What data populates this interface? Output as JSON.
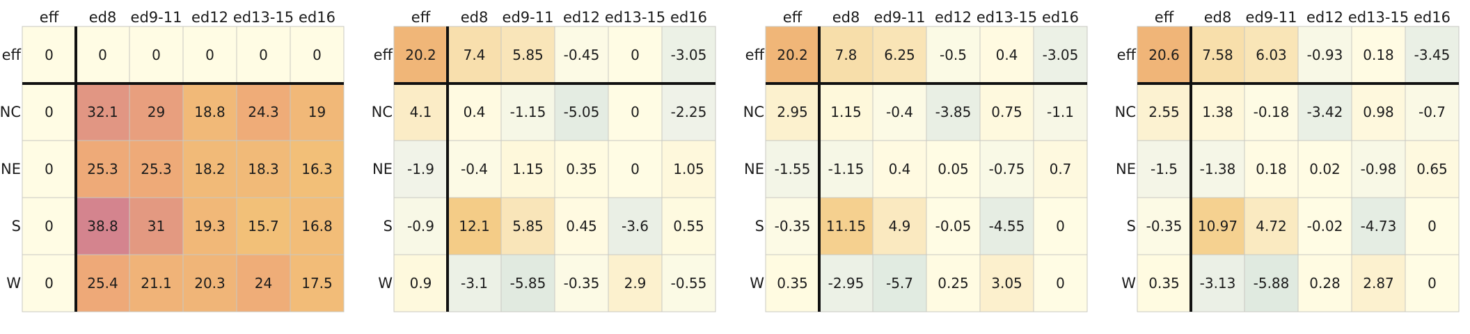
{
  "chart_data": [
    {
      "type": "heatmap",
      "columns": [
        "eff",
        "ed8",
        "ed9-11",
        "ed12",
        "ed13-15",
        "ed16"
      ],
      "rows": [
        "eff",
        "NC",
        "NE",
        "S",
        "W"
      ],
      "values": [
        [
          0,
          0,
          0,
          0,
          0,
          0
        ],
        [
          0,
          32.1,
          29,
          18.8,
          24.3,
          19
        ],
        [
          0,
          25.3,
          25.3,
          18.2,
          18.3,
          16.3
        ],
        [
          0,
          38.8,
          31,
          19.3,
          15.7,
          16.8
        ],
        [
          0,
          25.4,
          21.1,
          20.3,
          24,
          17.5
        ]
      ],
      "labels": [
        [
          "0",
          "0",
          "0",
          "0",
          "0",
          "0"
        ],
        [
          "0",
          "32.1",
          "29",
          "18.8",
          "24.3",
          "19"
        ],
        [
          "0",
          "25.3",
          "25.3",
          "18.2",
          "18.3",
          "16.3"
        ],
        [
          "0",
          "38.8",
          "31",
          "19.3",
          "15.7",
          "16.8"
        ],
        [
          "0",
          "25.4",
          "21.1",
          "20.3",
          "24",
          "17.5"
        ]
      ]
    },
    {
      "type": "heatmap",
      "columns": [
        "eff",
        "ed8",
        "ed9-11",
        "ed12",
        "ed13-15",
        "ed16"
      ],
      "rows": [
        "eff",
        "NC",
        "NE",
        "S",
        "W"
      ],
      "values": [
        [
          20.2,
          7.4,
          5.85,
          -0.45,
          0,
          -3.05
        ],
        [
          4.1,
          0.4,
          -1.15,
          -5.05,
          0,
          -2.25
        ],
        [
          -1.9,
          -0.4,
          1.15,
          0.35,
          0,
          1.05
        ],
        [
          -0.9,
          12.1,
          5.85,
          0.45,
          -3.6,
          0.55
        ],
        [
          0.9,
          -3.1,
          -5.85,
          -0.35,
          2.9,
          -0.55
        ]
      ],
      "labels": [
        [
          "20.2",
          "7.4",
          "5.85",
          "-0.45",
          "0",
          "-3.05"
        ],
        [
          "4.1",
          "0.4",
          "-1.15",
          "-5.05",
          "0",
          "-2.25"
        ],
        [
          "-1.9",
          "-0.4",
          "1.15",
          "0.35",
          "0",
          "1.05"
        ],
        [
          "-0.9",
          "12.1",
          "5.85",
          "0.45",
          "-3.6",
          "0.55"
        ],
        [
          "0.9",
          "-3.1",
          "-5.85",
          "-0.35",
          "2.9",
          "-0.55"
        ]
      ]
    },
    {
      "type": "heatmap",
      "columns": [
        "eff",
        "ed8",
        "ed9-11",
        "ed12",
        "ed13-15",
        "ed16"
      ],
      "rows": [
        "eff",
        "NC",
        "NE",
        "S",
        "W"
      ],
      "values": [
        [
          20.2,
          7.8,
          6.25,
          -0.5,
          0.4,
          -3.05
        ],
        [
          2.95,
          1.15,
          -0.4,
          -3.85,
          0.75,
          -1.1
        ],
        [
          -1.55,
          -1.15,
          0.4,
          0.05,
          -0.75,
          0.7
        ],
        [
          -0.35,
          11.15,
          4.9,
          -0.05,
          -4.55,
          0
        ],
        [
          0.35,
          -2.95,
          -5.7,
          0.25,
          3.05,
          0
        ]
      ],
      "labels": [
        [
          "20.2",
          "7.8",
          "6.25",
          "-0.5",
          "0.4",
          "-3.05"
        ],
        [
          "2.95",
          "1.15",
          "-0.4",
          "-3.85",
          "0.75",
          "-1.1"
        ],
        [
          "-1.55",
          "-1.15",
          "0.4",
          "0.05",
          "-0.75",
          "0.7"
        ],
        [
          "-0.35",
          "11.15",
          "4.9",
          "-0.05",
          "-4.55",
          "0"
        ],
        [
          "0.35",
          "-2.95",
          "-5.7",
          "0.25",
          "3.05",
          "0"
        ]
      ]
    },
    {
      "type": "heatmap",
      "columns": [
        "eff",
        "ed8",
        "ed9-11",
        "ed12",
        "ed13-15",
        "ed16"
      ],
      "rows": [
        "eff",
        "NC",
        "NE",
        "S",
        "W"
      ],
      "values": [
        [
          20.6,
          7.58,
          6.03,
          -0.93,
          0.18,
          -3.45
        ],
        [
          2.55,
          1.38,
          -0.18,
          -3.42,
          0.98,
          -0.7
        ],
        [
          -1.5,
          -1.38,
          0.18,
          0.02,
          -0.98,
          0.65
        ],
        [
          -0.35,
          10.97,
          4.72,
          -0.02,
          -4.73,
          0
        ],
        [
          0.35,
          -3.13,
          -5.88,
          0.28,
          2.87,
          0
        ]
      ],
      "labels": [
        [
          "20.6",
          "7.58",
          "6.03",
          "-0.93",
          "0.18",
          "-3.45"
        ],
        [
          "2.55",
          "1.38",
          "-0.18",
          "-3.42",
          "0.98",
          "-0.7"
        ],
        [
          "-1.5",
          "-1.38",
          "0.18",
          "0.02",
          "-0.98",
          "0.65"
        ],
        [
          "-0.35",
          "10.97",
          "4.72",
          "-0.02",
          "-4.73",
          "0"
        ],
        [
          "0.35",
          "-3.13",
          "-5.88",
          "0.28",
          "2.87",
          "0"
        ]
      ]
    }
  ]
}
